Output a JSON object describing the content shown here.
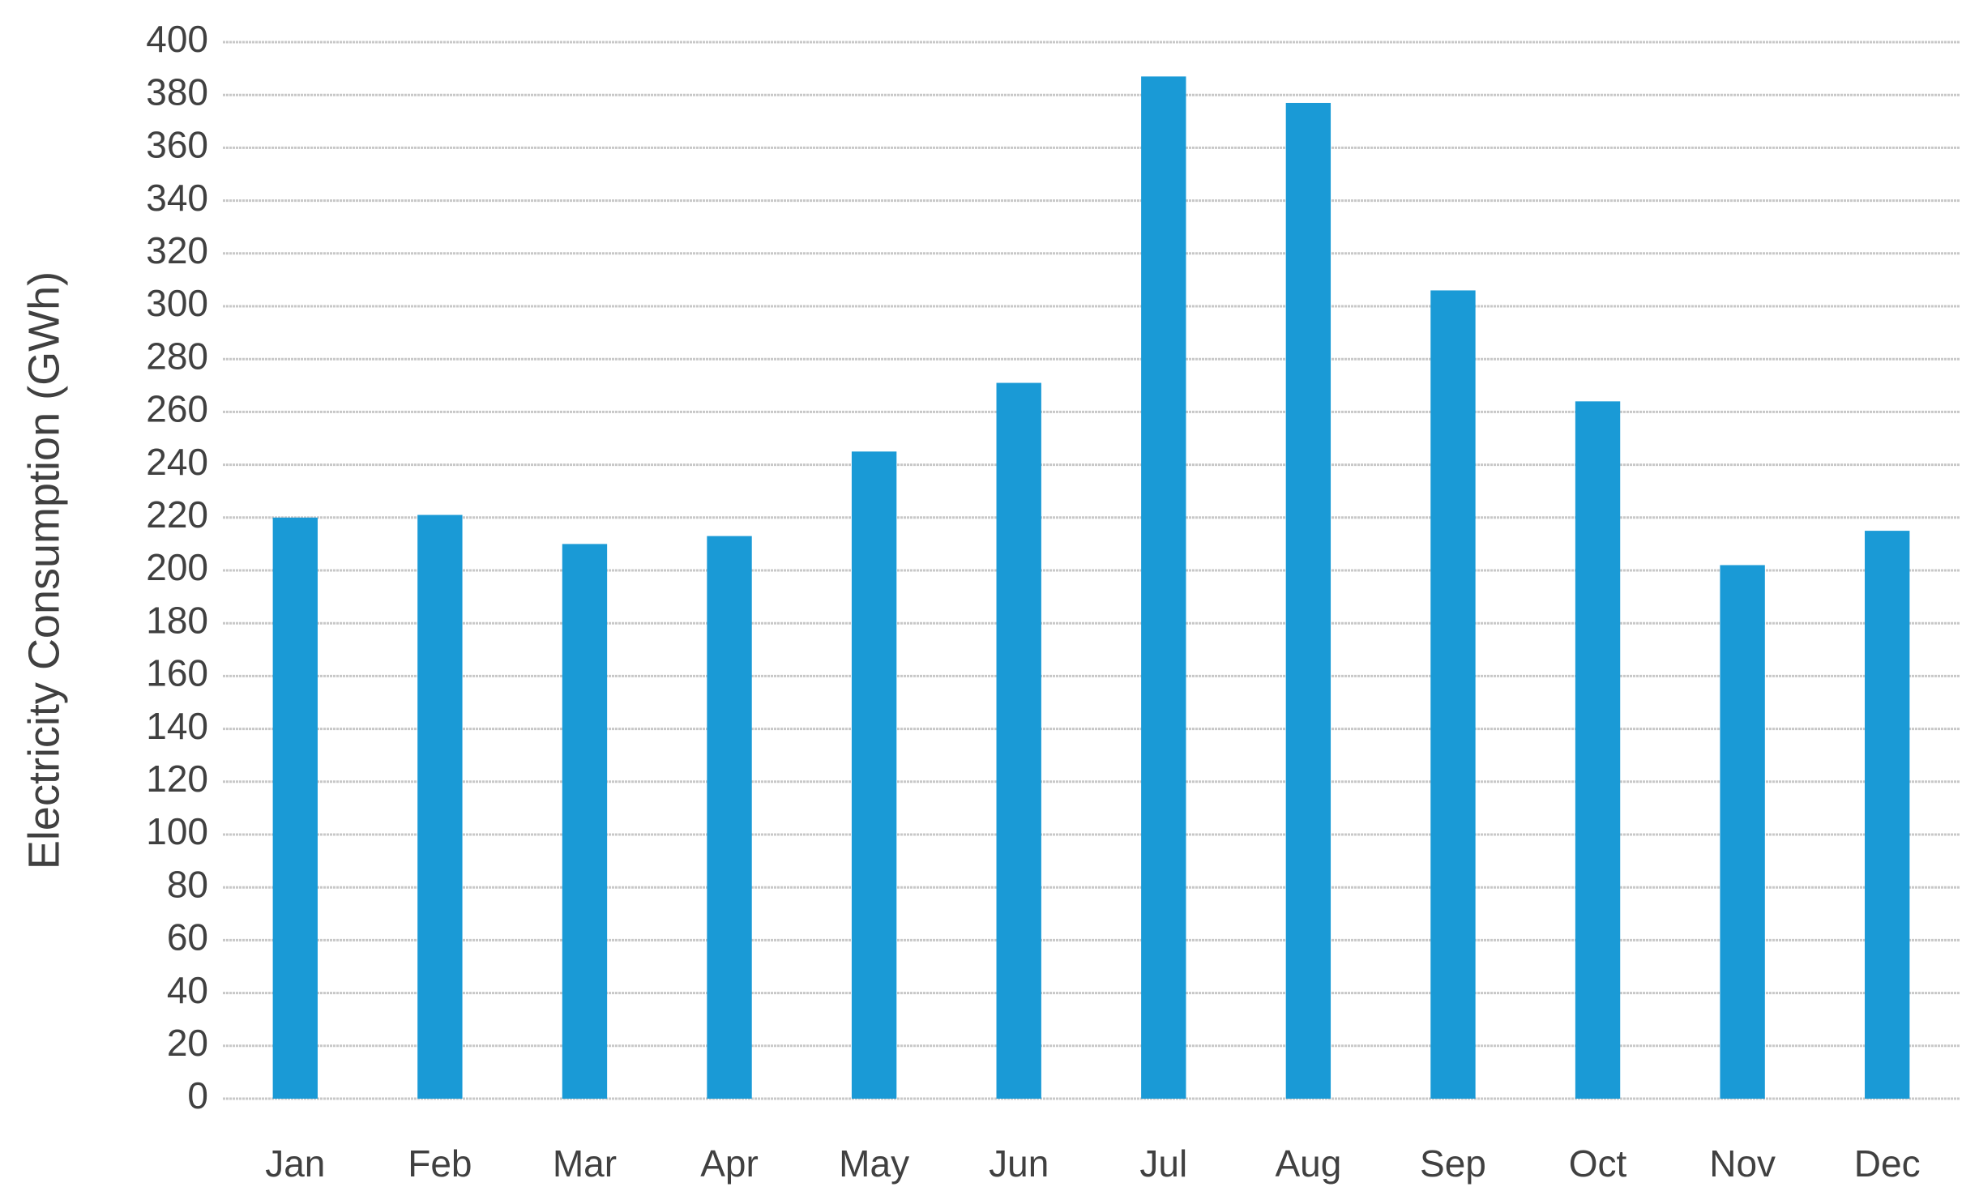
{
  "chart_data": {
    "type": "bar",
    "y_label": "Electricity Consumption (GWh)",
    "categories": [
      "Jan",
      "Feb",
      "Mar",
      "Apr",
      "May",
      "Jun",
      "Jul",
      "Aug",
      "Sep",
      "Oct",
      "Nov",
      "Dec"
    ],
    "values": [
      220,
      221,
      210,
      213,
      245,
      271,
      387,
      377,
      306,
      264,
      202,
      215
    ],
    "color": "#1a9ad6",
    "ylim": [
      0,
      400
    ],
    "yticks": [
      0,
      20,
      40,
      60,
      80,
      100,
      120,
      140,
      160,
      180,
      200,
      220,
      240,
      260,
      280,
      300,
      320,
      340,
      360,
      380,
      400
    ],
    "grid": true
  }
}
